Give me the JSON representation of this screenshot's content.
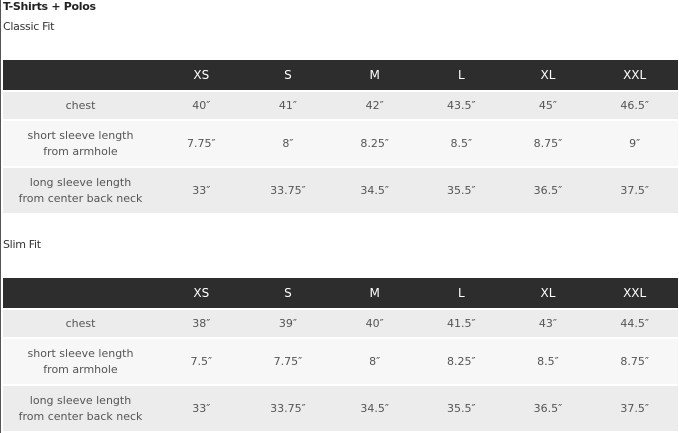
{
  "title": "T-Shirts + Polos",
  "sizes": [
    "XS",
    "S",
    "M",
    "L",
    "XL",
    "XXL"
  ],
  "tables": [
    {
      "fit": "Classic Fit",
      "rows": [
        {
          "label_lines": [
            "chest"
          ],
          "values": [
            "40″",
            "41″",
            "42″",
            "43.5″",
            "45″",
            "46.5″"
          ]
        },
        {
          "label_lines": [
            "short sleeve length",
            "from armhole"
          ],
          "values": [
            "7.75″",
            "8″",
            "8.25″",
            "8.5″",
            "8.75″",
            "9″"
          ]
        },
        {
          "label_lines": [
            "long sleeve length",
            "from center back neck"
          ],
          "values": [
            "33″",
            "33.75″",
            "34.5″",
            "35.5″",
            "36.5″",
            "37.5″"
          ]
        }
      ]
    },
    {
      "fit": "Slim Fit",
      "rows": [
        {
          "label_lines": [
            "chest"
          ],
          "values": [
            "38″",
            "39″",
            "40″",
            "41.5″",
            "43″",
            "44.5″"
          ]
        },
        {
          "label_lines": [
            "short sleeve length",
            "from armhole"
          ],
          "values": [
            "7.5″",
            "7.75″",
            "8″",
            "8.25″",
            "8.5″",
            "8.75″"
          ]
        },
        {
          "label_lines": [
            "long sleeve length",
            "from center back neck"
          ],
          "values": [
            "33″",
            "33.75″",
            "34.5″",
            "35.5″",
            "36.5″",
            "37.5″"
          ]
        }
      ]
    }
  ]
}
